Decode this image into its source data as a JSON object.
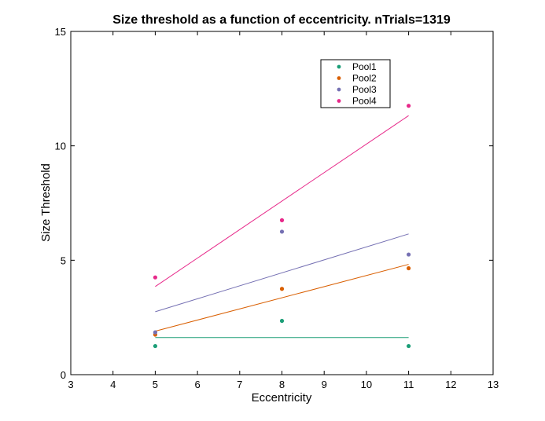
{
  "chart_data": {
    "type": "scatter",
    "title": "Size threshold as a function of eccentricity. nTrials=1319",
    "xlabel": "Eccentricity",
    "ylabel": "Size Threshold",
    "xlim": [
      3,
      13
    ],
    "ylim": [
      0,
      15
    ],
    "xticks": [
      3,
      4,
      5,
      6,
      7,
      8,
      9,
      10,
      11,
      12,
      13
    ],
    "yticks": [
      0,
      5,
      10,
      15
    ],
    "grid": false,
    "legend_position": "top-right",
    "x": [
      5,
      8,
      11
    ],
    "series": [
      {
        "name": "Pool1",
        "color": "#1b9e77",
        "values": [
          1.25,
          2.35,
          1.25
        ],
        "fit": [
          [
            5,
            1.62
          ],
          [
            11,
            1.62
          ]
        ]
      },
      {
        "name": "Pool2",
        "color": "#d95f02",
        "values": [
          1.75,
          3.75,
          4.65
        ],
        "fit": [
          [
            5,
            1.9
          ],
          [
            11,
            4.82
          ]
        ]
      },
      {
        "name": "Pool3",
        "color": "#7570b3",
        "values": [
          1.85,
          6.25,
          5.25
        ],
        "fit": [
          [
            5,
            2.75
          ],
          [
            11,
            6.15
          ]
        ]
      },
      {
        "name": "Pool4",
        "color": "#e7298a",
        "values": [
          4.25,
          6.75,
          11.75
        ],
        "fit": [
          [
            5,
            3.85
          ],
          [
            11,
            11.32
          ]
        ]
      }
    ]
  }
}
